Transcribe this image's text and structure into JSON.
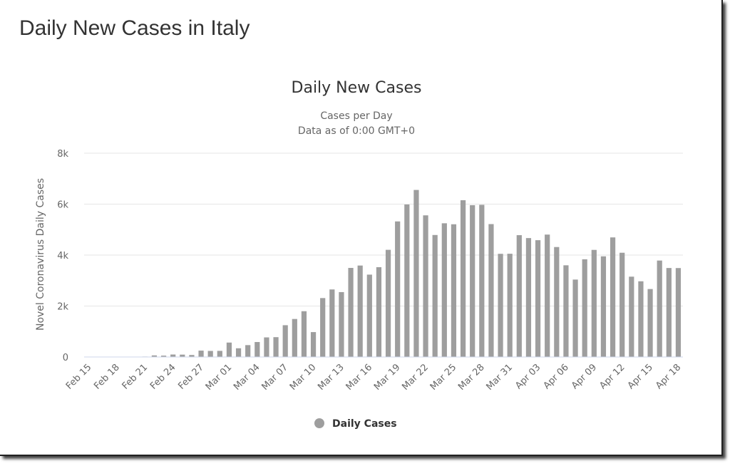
{
  "page": {
    "title": "Daily New Cases in Italy"
  },
  "chart_data": {
    "type": "bar",
    "title": "Daily New Cases",
    "subtitle": [
      "Cases per Day",
      "Data as of 0:00 GMT+0"
    ],
    "ylabel": "Novel Coronavirus Daily Cases",
    "xlabel": "",
    "ylim": [
      0,
      8000
    ],
    "y_ticks": [
      0,
      2000,
      4000,
      6000,
      8000
    ],
    "y_tick_labels": [
      "0",
      "2k",
      "4k",
      "6k",
      "8k"
    ],
    "grid": true,
    "legend": "bottom-center",
    "bar_color": "#9e9e9e",
    "categories": [
      "Feb 15",
      "Feb 16",
      "Feb 17",
      "Feb 18",
      "Feb 19",
      "Feb 20",
      "Feb 21",
      "Feb 22",
      "Feb 23",
      "Feb 24",
      "Feb 25",
      "Feb 26",
      "Feb 27",
      "Feb 28",
      "Feb 29",
      "Mar 01",
      "Mar 02",
      "Mar 03",
      "Mar 04",
      "Mar 05",
      "Mar 06",
      "Mar 07",
      "Mar 08",
      "Mar 09",
      "Mar 10",
      "Mar 11",
      "Mar 12",
      "Mar 13",
      "Mar 14",
      "Mar 15",
      "Mar 16",
      "Mar 17",
      "Mar 18",
      "Mar 19",
      "Mar 20",
      "Mar 21",
      "Mar 22",
      "Mar 23",
      "Mar 24",
      "Mar 25",
      "Mar 26",
      "Mar 27",
      "Mar 28",
      "Mar 29",
      "Mar 30",
      "Mar 31",
      "Apr 01",
      "Apr 02",
      "Apr 03",
      "Apr 04",
      "Apr 05",
      "Apr 06",
      "Apr 07",
      "Apr 08",
      "Apr 09",
      "Apr 10",
      "Apr 11",
      "Apr 12",
      "Apr 13",
      "Apr 14",
      "Apr 15",
      "Apr 16",
      "Apr 17",
      "Apr 18"
    ],
    "x_tick_labels": [
      "Feb 15",
      "Feb 18",
      "Feb 21",
      "Feb 24",
      "Feb 27",
      "Mar 01",
      "Mar 04",
      "Mar 07",
      "Mar 10",
      "Mar 13",
      "Mar 16",
      "Mar 19",
      "Mar 22",
      "Mar 25",
      "Mar 28",
      "Mar 31",
      "Apr 03",
      "Apr 06",
      "Apr 09",
      "Apr 12",
      "Apr 15",
      "Apr 18"
    ],
    "series": [
      {
        "name": "Daily Cases",
        "values": [
          0,
          0,
          0,
          0,
          0,
          0,
          17,
          62,
          53,
          97,
          93,
          78,
          250,
          238,
          240,
          566,
          342,
          466,
          587,
          769,
          778,
          1247,
          1492,
          1797,
          977,
          2313,
          2651,
          2547,
          3497,
          3590,
          3233,
          3526,
          4207,
          5322,
          5986,
          6557,
          5560,
          4789,
          5249,
          5210,
          6153,
          5959,
          5974,
          5217,
          4050,
          4053,
          4782,
          4668,
          4585,
          4805,
          4316,
          3599,
          3039,
          3836,
          4204,
          3951,
          4694,
          4092,
          3153,
          2972,
          2667,
          3786,
          3493,
          3491
        ]
      }
    ]
  }
}
